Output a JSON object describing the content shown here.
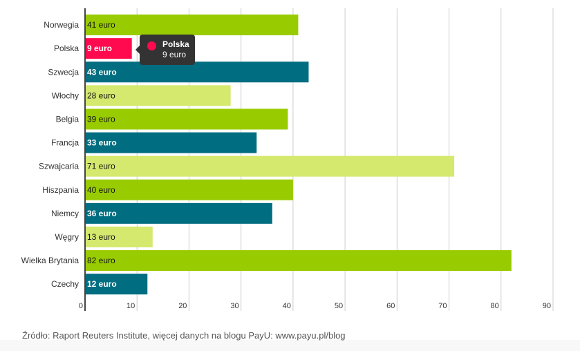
{
  "chart_data": {
    "type": "bar",
    "orientation": "horizontal",
    "categories": [
      "Norwegia",
      "Polska",
      "Szwecja",
      "Włochy",
      "Belgia",
      "Francja",
      "Szwajcaria",
      "Hiszpania",
      "Niemcy",
      "Węgry",
      "Wielka Brytania",
      "Czechy"
    ],
    "values": [
      41,
      9,
      43,
      28,
      39,
      33,
      71,
      40,
      36,
      13,
      82,
      12
    ],
    "labels": [
      "41 euro",
      "9 euro",
      "43 euro",
      "28 euro",
      "39 euro",
      "33 euro",
      "71 euro",
      "40 euro",
      "36 euro",
      "13 euro",
      "82 euro",
      "12 euro"
    ],
    "color_keys": [
      "g",
      "r",
      "t",
      "l",
      "g",
      "t",
      "l",
      "g",
      "t",
      "l",
      "g",
      "t"
    ],
    "colors": {
      "g": "#99cc00",
      "t": "#006d80",
      "l": "#d4e96e",
      "r": "#ff0a4e"
    },
    "xlim": [
      0,
      90
    ],
    "xticks": [
      0,
      10,
      20,
      30,
      40,
      50,
      60,
      70,
      80,
      90
    ],
    "grid": true,
    "title": "",
    "xlabel": "",
    "ylabel": ""
  },
  "tooltip": {
    "name": "Polska",
    "value": "9 euro"
  },
  "source": "Źródło: Raport Reuters Institute, więcej danych na blogu PayU: www.payu.pl/blog"
}
